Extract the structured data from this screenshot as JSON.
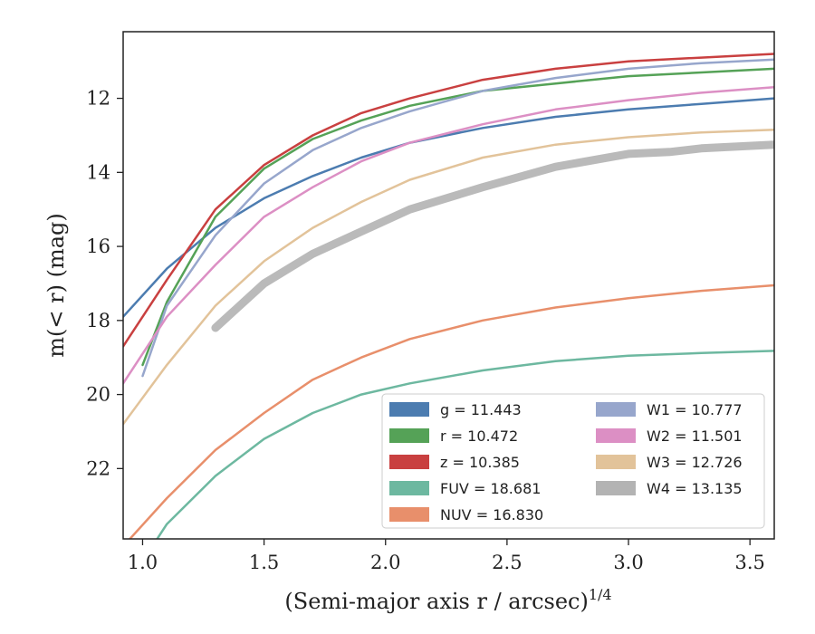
{
  "chart_data": {
    "type": "line",
    "xlabel": "(Semi-major axis r / arcsec)",
    "xlabel_var": "r",
    "xlabel_exp": "1/4",
    "ylabel": "m(< r) (mag)",
    "xlim": [
      0.92,
      3.6
    ],
    "ylim": [
      23.9,
      10.2
    ],
    "y_inverted": true,
    "grid": false,
    "legend_placement": "lower-right",
    "xticks": [
      1.0,
      1.5,
      2.0,
      2.5,
      3.0,
      3.5
    ],
    "xtick_labels": [
      "1.0",
      "1.5",
      "2.0",
      "2.5",
      "3.0",
      "3.5"
    ],
    "yticks": [
      12,
      14,
      16,
      18,
      20,
      22
    ],
    "ytick_labels": [
      "12",
      "14",
      "16",
      "18",
      "20",
      "22"
    ],
    "series": [
      {
        "name": "g",
        "legend": "g = 11.443",
        "color": "#4c7cb0",
        "x": [
          0.92,
          1.1,
          1.3,
          1.5,
          1.7,
          1.9,
          2.1,
          2.4,
          2.7,
          3.0,
          3.3,
          3.6
        ],
        "y": [
          17.9,
          16.6,
          15.5,
          14.7,
          14.1,
          13.6,
          13.2,
          12.8,
          12.5,
          12.3,
          12.15,
          12.0
        ]
      },
      {
        "name": "r",
        "legend": "r = 10.472",
        "color": "#55a257",
        "x": [
          1.0,
          1.1,
          1.3,
          1.5,
          1.7,
          1.9,
          2.1,
          2.4,
          2.7,
          3.0,
          3.3,
          3.6
        ],
        "y": [
          19.2,
          17.5,
          15.2,
          13.9,
          13.1,
          12.6,
          12.2,
          11.8,
          11.6,
          11.4,
          11.3,
          11.2
        ]
      },
      {
        "name": "z",
        "legend": "z = 10.385",
        "color": "#c94040",
        "x": [
          0.92,
          1.1,
          1.3,
          1.5,
          1.7,
          1.9,
          2.1,
          2.4,
          2.7,
          3.0,
          3.3,
          3.6
        ],
        "y": [
          18.7,
          16.9,
          15.0,
          13.8,
          13.0,
          12.4,
          12.0,
          11.5,
          11.2,
          11.0,
          10.9,
          10.8
        ]
      },
      {
        "name": "FUV",
        "legend": "FUV = 18.681",
        "color": "#6db8a0",
        "x": [
          1.0,
          1.1,
          1.3,
          1.5,
          1.7,
          1.9,
          2.1,
          2.4,
          2.7,
          3.0,
          3.3,
          3.6
        ],
        "y": [
          24.5,
          23.5,
          22.2,
          21.2,
          20.5,
          20.0,
          19.7,
          19.35,
          19.1,
          18.95,
          18.88,
          18.82
        ]
      },
      {
        "name": "NUV",
        "legend": "NUV = 16.830",
        "color": "#e88f6b",
        "x": [
          0.92,
          1.1,
          1.3,
          1.5,
          1.7,
          1.9,
          2.1,
          2.4,
          2.7,
          3.0,
          3.3,
          3.6
        ],
        "y": [
          24.1,
          22.8,
          21.5,
          20.5,
          19.6,
          19.0,
          18.5,
          18.0,
          17.65,
          17.4,
          17.2,
          17.05
        ]
      },
      {
        "name": "W1",
        "legend": "W1 = 10.777",
        "color": "#97a6cc",
        "x": [
          1.0,
          1.1,
          1.3,
          1.5,
          1.7,
          1.9,
          2.1,
          2.4,
          2.7,
          3.0,
          3.3,
          3.6
        ],
        "y": [
          19.5,
          17.6,
          15.7,
          14.3,
          13.4,
          12.8,
          12.35,
          11.8,
          11.45,
          11.2,
          11.05,
          10.95
        ]
      },
      {
        "name": "W2",
        "legend": "W2 = 11.501",
        "color": "#dc8fc4",
        "x": [
          0.92,
          1.1,
          1.3,
          1.5,
          1.7,
          1.9,
          2.1,
          2.4,
          2.7,
          3.0,
          3.3,
          3.6
        ],
        "y": [
          19.7,
          17.9,
          16.5,
          15.2,
          14.4,
          13.7,
          13.2,
          12.7,
          12.3,
          12.05,
          11.85,
          11.7
        ]
      },
      {
        "name": "W3",
        "legend": "W3 = 12.726",
        "color": "#e2c39a",
        "x": [
          0.92,
          1.1,
          1.3,
          1.5,
          1.7,
          1.9,
          2.1,
          2.4,
          2.7,
          3.0,
          3.3,
          3.6
        ],
        "y": [
          20.8,
          19.2,
          17.6,
          16.4,
          15.5,
          14.8,
          14.2,
          13.6,
          13.25,
          13.05,
          12.92,
          12.85
        ]
      },
      {
        "name": "W4",
        "legend": "W4 = 13.135",
        "color": "#b3b3b3",
        "x": [
          1.3,
          1.5,
          1.7,
          1.9,
          2.1,
          2.4,
          2.7,
          3.0,
          3.17,
          3.3,
          3.6
        ],
        "y": [
          18.2,
          17.0,
          16.2,
          15.6,
          15.0,
          14.4,
          13.85,
          13.5,
          13.45,
          13.35,
          13.25
        ]
      }
    ]
  }
}
